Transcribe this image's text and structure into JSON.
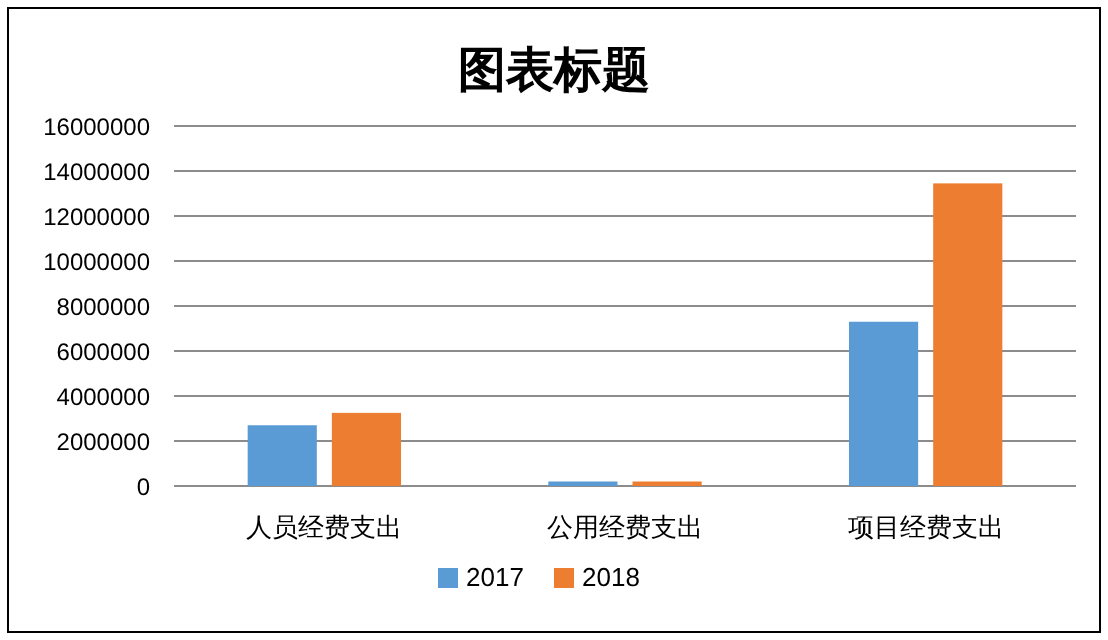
{
  "chart_data": {
    "type": "bar",
    "title": "图表标题",
    "categories": [
      "人员经费支出",
      "公用经费支出",
      "项目经费支出"
    ],
    "series": [
      {
        "name": "2017",
        "color": "#5b9bd5",
        "values": [
          2700000,
          200000,
          7300000
        ]
      },
      {
        "name": "2018",
        "color": "#ed7d31",
        "values": [
          3250000,
          200000,
          13450000
        ]
      }
    ],
    "ylim": [
      0,
      16000000
    ],
    "yticks": [
      0,
      2000000,
      4000000,
      6000000,
      8000000,
      10000000,
      12000000,
      14000000,
      16000000
    ],
    "grid": "y",
    "legend": "bottom"
  }
}
